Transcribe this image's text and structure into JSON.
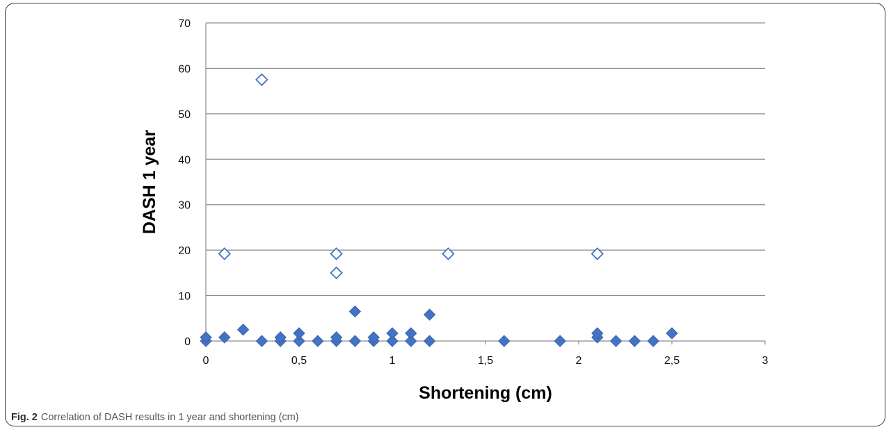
{
  "figure": {
    "caption_label": "Fig. 2",
    "caption_text": "Correlation of DASH results in 1 year and shortening (cm)"
  },
  "chart_data": {
    "type": "scatter",
    "xlabel": "Shortening (cm)",
    "ylabel": "DASH 1 year",
    "xlim": [
      0,
      3
    ],
    "ylim": [
      0,
      70
    ],
    "x_ticks": [
      0,
      0.5,
      1,
      1.5,
      2,
      2.5,
      3
    ],
    "x_tick_labels": [
      "0",
      "0,5",
      "1",
      "1,5",
      "2",
      "2,5",
      "3"
    ],
    "y_ticks": [
      0,
      10,
      20,
      30,
      40,
      50,
      60,
      70
    ],
    "y_tick_labels": [
      "0",
      "10",
      "20",
      "30",
      "40",
      "50",
      "60",
      "70"
    ],
    "grid": "horizontal",
    "legend": "none",
    "series": [
      {
        "marker": "diamond-filled",
        "color": "#4472c4",
        "points": [
          {
            "x": 0,
            "y": 0
          },
          {
            "x": 0,
            "y": 0.8
          },
          {
            "x": 0.1,
            "y": 0.8
          },
          {
            "x": 0.2,
            "y": 2.5
          },
          {
            "x": 0.3,
            "y": 0
          },
          {
            "x": 0.4,
            "y": 0
          },
          {
            "x": 0.4,
            "y": 0.8
          },
          {
            "x": 0.5,
            "y": 0
          },
          {
            "x": 0.5,
            "y": 1.7
          },
          {
            "x": 0.6,
            "y": 0
          },
          {
            "x": 0.7,
            "y": 0
          },
          {
            "x": 0.7,
            "y": 0.8
          },
          {
            "x": 0.8,
            "y": 0
          },
          {
            "x": 0.8,
            "y": 6.5
          },
          {
            "x": 0.9,
            "y": 0
          },
          {
            "x": 0.9,
            "y": 0.8
          },
          {
            "x": 1.0,
            "y": 0
          },
          {
            "x": 1.0,
            "y": 1.7
          },
          {
            "x": 1.1,
            "y": 0
          },
          {
            "x": 1.1,
            "y": 1.7
          },
          {
            "x": 1.2,
            "y": 0
          },
          {
            "x": 1.2,
            "y": 5.8
          },
          {
            "x": 1.6,
            "y": 0
          },
          {
            "x": 1.9,
            "y": 0
          },
          {
            "x": 2.1,
            "y": 0.8
          },
          {
            "x": 2.1,
            "y": 1.7
          },
          {
            "x": 2.2,
            "y": 0
          },
          {
            "x": 2.3,
            "y": 0
          },
          {
            "x": 2.4,
            "y": 0
          },
          {
            "x": 2.5,
            "y": 1.7
          }
        ]
      },
      {
        "marker": "diamond-open",
        "color": "#4472c4",
        "points": [
          {
            "x": 0.1,
            "y": 19.2
          },
          {
            "x": 0.3,
            "y": 57.5
          },
          {
            "x": 0.7,
            "y": 19.2
          },
          {
            "x": 0.7,
            "y": 15
          },
          {
            "x": 1.3,
            "y": 19.2
          },
          {
            "x": 2.1,
            "y": 19.2
          }
        ]
      }
    ]
  }
}
